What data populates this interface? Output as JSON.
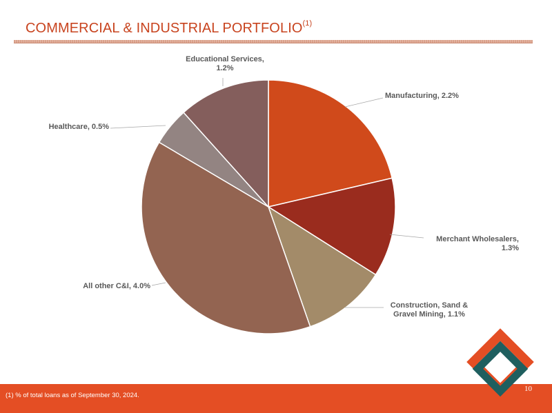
{
  "header": {
    "title": "COMMERCIAL & INDUSTRIAL PORTFOLIO",
    "title_sup": "(1)"
  },
  "footer": {
    "footnote": "(1)  % of total loans as of September 30, 2024.",
    "page_number": "10",
    "bar_color": "#e44e24"
  },
  "logo": {
    "icon": "diamond-logo-icon",
    "colors": [
      "#e44e24",
      "#1f5f5f"
    ]
  },
  "chart_data": {
    "type": "pie",
    "unit": "% of total loans",
    "start": "12 o'clock, clockwise",
    "slices": [
      {
        "label": "Manufacturing",
        "label_lines": [
          "Manufacturing, 2.2%"
        ],
        "value": 2.2,
        "color": "#d04a1b"
      },
      {
        "label": "Merchant Wholesalers",
        "label_lines": [
          "Merchant Wholesalers,",
          "1.3%"
        ],
        "value": 1.3,
        "color": "#9a2c1e"
      },
      {
        "label": "Construction, Sand & Gravel Mining",
        "label_lines": [
          "Construction, Sand &",
          "Gravel Mining, 1.1%"
        ],
        "value": 1.1,
        "color": "#a38b69"
      },
      {
        "label": "All other C&I",
        "label_lines": [
          "All other C&I, 4.0%"
        ],
        "value": 4.0,
        "color": "#936451"
      },
      {
        "label": "Healthcare",
        "label_lines": [
          "Healthcare, 0.5%"
        ],
        "value": 0.5,
        "color": "#938482"
      },
      {
        "label": "Educational Services",
        "label_lines": [
          "Educational Services,",
          "1.2%"
        ],
        "value": 1.2,
        "color": "#845e5c"
      }
    ]
  }
}
